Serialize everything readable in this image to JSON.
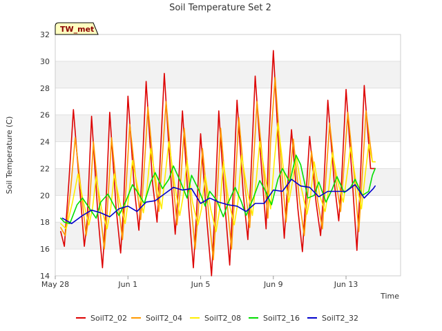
{
  "chart_data": {
    "type": "line",
    "title": "Soil Temperature Set 2",
    "xlabel": "Time",
    "ylabel": "Soil Temperature (C)",
    "ylim": [
      14,
      32
    ],
    "yticks": [
      14,
      16,
      18,
      20,
      22,
      24,
      26,
      28,
      30,
      32
    ],
    "xlim": [
      0,
      19
    ],
    "xtick_positions": [
      0,
      4,
      8,
      12,
      16
    ],
    "xtick_labels": [
      "May 28",
      "Jun 1",
      "Jun 5",
      "Jun 9",
      "Jun 13"
    ],
    "grid": "horizontal-bands",
    "legend_position": "bottom",
    "station_badge": "TW_met",
    "colors": {
      "SoilT2_02": "#dd0000",
      "SoilT2_04": "#ff9900",
      "SoilT2_08": "#ffee00",
      "SoilT2_16": "#00dd00",
      "SoilT2_32": "#0000cc",
      "band": "#f2f2f2",
      "badge_bg": "#ffffc0"
    },
    "series": [
      {
        "name": "SoilT2_02",
        "x": [
          0.3,
          0.5,
          0.75,
          1.0,
          1.35,
          1.6,
          1.75,
          2.0,
          2.35,
          2.6,
          2.75,
          3.0,
          3.35,
          3.6,
          3.75,
          4.0,
          4.35,
          4.6,
          4.75,
          5.0,
          5.35,
          5.6,
          5.75,
          6.0,
          6.35,
          6.6,
          6.75,
          7.0,
          7.35,
          7.6,
          7.75,
          8.0,
          8.35,
          8.6,
          8.75,
          9.0,
          9.35,
          9.6,
          9.75,
          10.0,
          10.35,
          10.6,
          10.75,
          11.0,
          11.35,
          11.6,
          11.75,
          12.0,
          12.35,
          12.6,
          12.75,
          13.0,
          13.35,
          13.6,
          13.75,
          14.0,
          14.35,
          14.6,
          14.75,
          15.0,
          15.35,
          15.6,
          15.75,
          16.0,
          16.35,
          16.6,
          16.75,
          17.0,
          17.35,
          17.6
        ],
        "y": [
          17.3,
          16.2,
          21.0,
          26.4,
          20.5,
          16.2,
          18.0,
          25.9,
          18.5,
          14.6,
          18.0,
          26.2,
          19.0,
          15.7,
          19.0,
          27.4,
          20.5,
          17.4,
          21.0,
          28.5,
          21.0,
          18.0,
          22.0,
          29.1,
          21.5,
          17.1,
          20.0,
          26.3,
          19.0,
          14.6,
          18.0,
          24.6,
          18.0,
          14.0,
          18.0,
          26.3,
          19.0,
          14.8,
          19.0,
          27.1,
          20.0,
          16.7,
          21.0,
          28.9,
          22.0,
          17.5,
          24.0,
          30.8,
          22.0,
          16.8,
          20.0,
          24.9,
          19.0,
          15.8,
          19.0,
          24.4,
          19.5,
          17.0,
          20.0,
          27.1,
          21.0,
          18.1,
          21.0,
          27.9,
          21.0,
          15.9,
          20.0,
          28.2,
          22.0,
          22.0
        ]
      },
      {
        "name": "SoilT2_04",
        "x": [
          0.3,
          0.55,
          0.85,
          1.1,
          1.45,
          1.7,
          1.85,
          2.1,
          2.45,
          2.7,
          2.85,
          3.1,
          3.45,
          3.7,
          3.85,
          4.1,
          4.45,
          4.7,
          4.85,
          5.1,
          5.45,
          5.7,
          5.85,
          6.1,
          6.45,
          6.7,
          6.85,
          7.1,
          7.45,
          7.7,
          7.85,
          8.1,
          8.45,
          8.7,
          8.85,
          9.1,
          9.45,
          9.7,
          9.85,
          10.1,
          10.45,
          10.7,
          10.85,
          11.1,
          11.45,
          11.7,
          11.85,
          12.1,
          12.45,
          12.7,
          12.85,
          13.1,
          13.45,
          13.7,
          13.85,
          14.1,
          14.45,
          14.7,
          14.85,
          15.1,
          15.45,
          15.7,
          15.85,
          16.1,
          16.45,
          16.7,
          16.85,
          17.1,
          17.45,
          17.6
        ],
        "y": [
          17.6,
          17.0,
          20.5,
          24.3,
          20.0,
          17.0,
          18.5,
          24.0,
          19.0,
          16.0,
          18.5,
          24.3,
          19.5,
          16.7,
          19.5,
          25.3,
          21.0,
          18.2,
          21.0,
          26.6,
          21.5,
          18.8,
          22.0,
          27.0,
          21.5,
          17.8,
          20.0,
          25.0,
          19.5,
          16.0,
          18.5,
          23.5,
          18.5,
          15.2,
          18.5,
          25.0,
          19.5,
          16.0,
          19.5,
          25.8,
          20.5,
          17.6,
          21.0,
          27.0,
          22.0,
          18.3,
          24.0,
          28.8,
          22.0,
          18.0,
          20.5,
          24.2,
          19.5,
          17.0,
          19.5,
          23.3,
          19.5,
          17.5,
          20.5,
          25.4,
          21.0,
          18.8,
          21.5,
          26.2,
          21.5,
          17.3,
          20.5,
          26.3,
          22.5,
          22.5
        ]
      },
      {
        "name": "SoilT2_08",
        "x": [
          0.3,
          0.6,
          0.95,
          1.25,
          1.55,
          1.85,
          2.05,
          2.25,
          2.55,
          2.85,
          3.05,
          3.25,
          3.55,
          3.85,
          4.05,
          4.25,
          4.55,
          4.85,
          5.05,
          5.25,
          5.55,
          5.85,
          6.05,
          6.25,
          6.55,
          6.85,
          7.05,
          7.25,
          7.55,
          7.85,
          8.05,
          8.25,
          8.55,
          8.85,
          9.05,
          9.25,
          9.55,
          9.85,
          10.05,
          10.25,
          10.55,
          10.85,
          11.05,
          11.25,
          11.55,
          11.85,
          12.05,
          12.25,
          12.55,
          12.85,
          13.05,
          13.25,
          13.55,
          13.85,
          14.05,
          14.25,
          14.55,
          14.85,
          15.05,
          15.25,
          15.55,
          15.85,
          16.05,
          16.25,
          16.55,
          16.85,
          17.05,
          17.25,
          17.45,
          17.6
        ],
        "y": [
          17.9,
          17.5,
          19.5,
          21.6,
          19.5,
          17.8,
          19.0,
          21.4,
          19.0,
          17.5,
          19.0,
          21.6,
          19.5,
          17.9,
          20.0,
          22.6,
          20.5,
          18.7,
          20.5,
          23.5,
          21.0,
          19.0,
          21.5,
          24.0,
          21.0,
          18.5,
          20.0,
          22.6,
          19.5,
          17.8,
          19.0,
          21.5,
          19.0,
          17.3,
          19.0,
          22.5,
          19.5,
          17.8,
          19.5,
          23.0,
          20.5,
          18.5,
          21.0,
          24.0,
          21.5,
          19.0,
          22.5,
          25.4,
          22.0,
          19.5,
          21.0,
          23.0,
          20.5,
          18.6,
          20.0,
          22.5,
          20.0,
          18.8,
          20.5,
          23.2,
          21.0,
          19.5,
          21.5,
          23.6,
          21.0,
          19.0,
          21.5,
          23.8,
          22.5,
          22.5
        ]
      },
      {
        "name": "SoilT2_16",
        "x": [
          0.3,
          0.5,
          0.8,
          1.2,
          1.5,
          1.9,
          2.25,
          2.5,
          2.9,
          3.25,
          3.5,
          3.9,
          4.25,
          4.5,
          4.9,
          5.25,
          5.5,
          5.9,
          6.25,
          6.5,
          6.9,
          7.25,
          7.5,
          7.9,
          8.25,
          8.5,
          8.9,
          9.25,
          9.5,
          9.9,
          10.25,
          10.5,
          10.9,
          11.25,
          11.5,
          11.9,
          12.25,
          12.5,
          12.9,
          13.25,
          13.5,
          13.9,
          14.25,
          14.5,
          14.9,
          15.25,
          15.5,
          15.9,
          16.25,
          16.5,
          16.9,
          17.25,
          17.45,
          17.6
        ],
        "y": [
          18.3,
          18.0,
          17.9,
          19.3,
          19.8,
          19.0,
          18.3,
          19.5,
          20.1,
          19.2,
          18.5,
          19.6,
          20.8,
          20.3,
          19.4,
          21.0,
          21.7,
          20.5,
          21.2,
          22.2,
          21.0,
          19.8,
          21.5,
          20.4,
          19.2,
          20.3,
          19.6,
          18.4,
          19.4,
          20.6,
          19.5,
          18.5,
          19.8,
          21.1,
          20.5,
          19.3,
          21.2,
          22.0,
          21.0,
          23.0,
          22.3,
          19.8,
          20.0,
          21.0,
          19.5,
          20.5,
          21.4,
          20.2,
          20.6,
          21.2,
          20.0,
          20.3,
          21.5,
          22.0
        ]
      },
      {
        "name": "SoilT2_32",
        "x": [
          0.4,
          0.9,
          1.5,
          2.0,
          2.5,
          3.0,
          3.5,
          4.0,
          4.5,
          5.0,
          5.5,
          6.0,
          6.5,
          7.0,
          7.5,
          8.0,
          8.5,
          9.0,
          9.5,
          10.0,
          10.5,
          11.0,
          11.5,
          12.0,
          12.5,
          13.0,
          13.5,
          14.0,
          14.5,
          15.0,
          15.5,
          16.0,
          16.5,
          17.0,
          17.5,
          17.6
        ],
        "y": [
          18.3,
          17.9,
          18.5,
          18.9,
          18.7,
          18.4,
          19.0,
          19.2,
          18.8,
          19.5,
          19.6,
          20.1,
          20.6,
          20.4,
          20.5,
          19.4,
          19.8,
          19.5,
          19.3,
          19.2,
          18.8,
          19.4,
          19.4,
          20.4,
          20.3,
          21.2,
          20.7,
          20.6,
          19.9,
          20.3,
          20.3,
          20.3,
          20.8,
          19.8,
          20.5,
          20.7
        ]
      }
    ]
  }
}
